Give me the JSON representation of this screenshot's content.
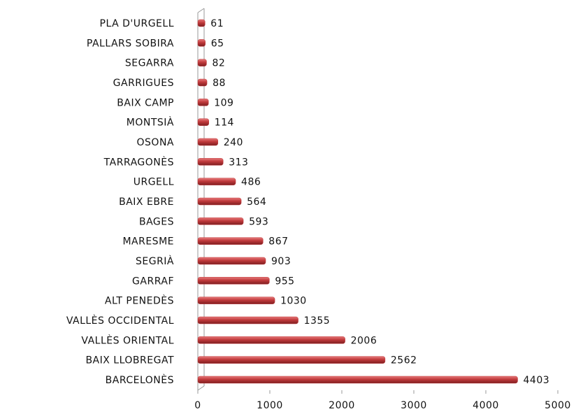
{
  "chart_data": {
    "type": "barh",
    "categories": [
      "PLA D'URGELL",
      "PALLARS SOBIRA",
      "SEGARRA",
      "GARRIGUES",
      "BAIX CAMP",
      "MONTSIÀ",
      "OSONA",
      "TARRAGONÈS",
      "URGELL",
      "BAIX EBRE",
      "BAGES",
      "MARESME",
      "SEGRIÀ",
      "GARRAF",
      "ALT PENEDÈS",
      "VALLÈS OCCIDENTAL",
      "VALLÈS ORIENTAL",
      "BAIX LLOBREGAT",
      "BARCELONÈS"
    ],
    "values": [
      61,
      65,
      82,
      88,
      109,
      114,
      240,
      313,
      486,
      564,
      593,
      867,
      903,
      955,
      1030,
      1355,
      2006,
      2562,
      4403
    ],
    "color": "#c0393b",
    "xlim": [
      0,
      5000
    ],
    "xticks": [
      0,
      1000,
      2000,
      3000,
      4000,
      5000
    ]
  }
}
